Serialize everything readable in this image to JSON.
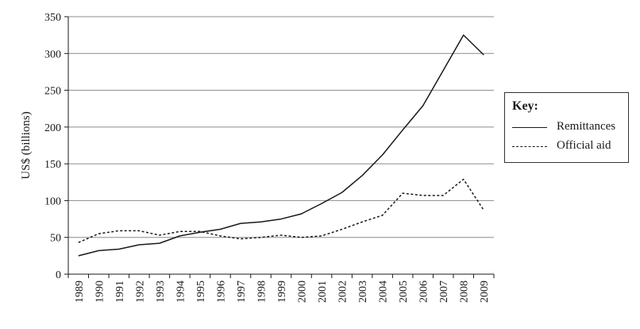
{
  "chart_data": {
    "type": "line",
    "x": [
      "1989",
      "1990",
      "1991",
      "1992",
      "1993",
      "1994",
      "1995",
      "1996",
      "1997",
      "1998",
      "1999",
      "2000",
      "2001",
      "2002",
      "2003",
      "2004",
      "2005",
      "2006",
      "2007",
      "2008",
      "2009"
    ],
    "ylabel": "US$ (billions)",
    "ylim": [
      0,
      350
    ],
    "yticks": [
      0,
      50,
      100,
      150,
      200,
      250,
      300,
      350
    ],
    "grid": true,
    "legend": {
      "title": "Key:",
      "placement": "right"
    },
    "series": [
      {
        "name": "Remittances",
        "style": "solid",
        "values": [
          25,
          32,
          34,
          40,
          42,
          52,
          57,
          61,
          69,
          71,
          75,
          82,
          96,
          111,
          134,
          162,
          196,
          229,
          277,
          325,
          298
        ]
      },
      {
        "name": "Official aid",
        "style": "dashed",
        "values": [
          43,
          55,
          59,
          59,
          53,
          58,
          58,
          52,
          48,
          50,
          53,
          50,
          52,
          61,
          71,
          80,
          110,
          107,
          107,
          129,
          87
        ]
      }
    ]
  }
}
